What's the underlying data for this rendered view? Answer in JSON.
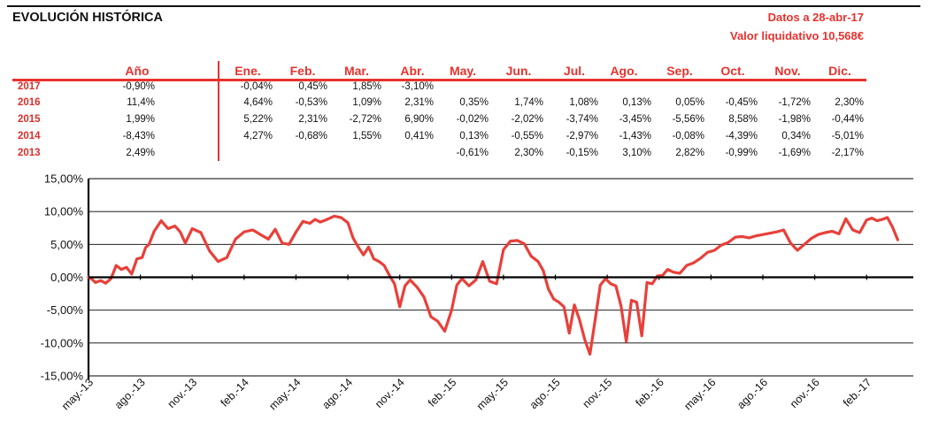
{
  "title": "EVOLUCIÓN HISTÓRICA",
  "date_line": "Datos a 28-abr-17",
  "value_line": "Valor liquidativo 10,568€",
  "colors": {
    "accent": "#e8322e",
    "line": "#e8403a"
  },
  "table": {
    "headers": [
      "Año",
      "Ene.",
      "Feb.",
      "Mar.",
      "Abr.",
      "May.",
      "Jun.",
      "Jul.",
      "Ago.",
      "Sep.",
      "Oct.",
      "Nov.",
      "Dic."
    ],
    "rows": [
      {
        "year": "2017",
        "cells": [
          "-0,90%",
          "-0,04%",
          "0,45%",
          "1,85%",
          "-3,10%",
          "",
          "",
          "",
          "",
          "",
          "",
          "",
          ""
        ]
      },
      {
        "year": "2016",
        "cells": [
          "11,4%",
          "4,64%",
          "-0,53%",
          "1,09%",
          "2,31%",
          "0,35%",
          "1,74%",
          "1,08%",
          "0,13%",
          "0,05%",
          "-0,45%",
          "-1,72%",
          "2,30%"
        ]
      },
      {
        "year": "2015",
        "cells": [
          "1,99%",
          "5,22%",
          "2,31%",
          "-2,72%",
          "6,90%",
          "-0,02%",
          "-2,02%",
          "-3,74%",
          "-3,45%",
          "-5,56%",
          "8,58%",
          "-1,98%",
          "-0,44%"
        ]
      },
      {
        "year": "2014",
        "cells": [
          "-8,43%",
          "4,27%",
          "-0,68%",
          "1,55%",
          "0,41%",
          "0,13%",
          "-0,55%",
          "-2,97%",
          "-1,43%",
          "-0,08%",
          "-4,39%",
          "0,34%",
          "-5,01%"
        ]
      },
      {
        "year": "2013",
        "cells": [
          "2,49%",
          "",
          "",
          "",
          "",
          "-0,61%",
          "2,30%",
          "-0,15%",
          "3,10%",
          "2,82%",
          "-0,99%",
          "-1,69%",
          "-2,17%"
        ]
      }
    ]
  },
  "chart_data": {
    "type": "line",
    "title": "",
    "xlabel": "",
    "ylabel": "",
    "ylim": [
      -15,
      15
    ],
    "y_ticks": [
      "-15,00%",
      "-10,00%",
      "-5,00%",
      "0,00%",
      "5,00%",
      "10,00%",
      "15,00%"
    ],
    "y_tick_values": [
      -15,
      -10,
      -5,
      0,
      5,
      10,
      15
    ],
    "x_ticks": [
      "may.-13",
      "ago.-13",
      "nov.-13",
      "feb.-14",
      "may.-14",
      "ago.-14",
      "nov.-14",
      "feb.-15",
      "may.-15",
      "ago.-15",
      "nov.-15",
      "feb.-16",
      "may.-16",
      "ago.-16",
      "nov.-16",
      "feb.-17"
    ],
    "grid": true,
    "series": [
      {
        "x": [
          0,
          0.2,
          0.4,
          0.7,
          1.0,
          1.3,
          1.6,
          1.9,
          2.2,
          2.5,
          2.8,
          3.1,
          3.3,
          3.5,
          3.8,
          4.2,
          4.6,
          5.0,
          5.3,
          5.6,
          6.0,
          6.5,
          7.0,
          7.5,
          8.0,
          8.5,
          9.0,
          9.5,
          10.0,
          10.4,
          10.8,
          11.2,
          11.6,
          12.0,
          12.4,
          12.8,
          13.1,
          13.4,
          13.8,
          14.2,
          14.6,
          15.0,
          15.3,
          15.6,
          15.9,
          16.2,
          16.5,
          16.8,
          17.1,
          17.4,
          17.7,
          18.0,
          18.3,
          18.6,
          19.0,
          19.4,
          19.8,
          20.2,
          20.6,
          21.0,
          21.3,
          21.6,
          22.0,
          22.4,
          22.8,
          23.2,
          23.6,
          24.0,
          24.4,
          24.8,
          25.2,
          25.6,
          26.0,
          26.3,
          26.6,
          26.9,
          27.2,
          27.5,
          27.8,
          28.1,
          28.4,
          28.7,
          29.0,
          29.3,
          29.6,
          29.9,
          30.2,
          30.5,
          30.8,
          31.1,
          31.4,
          31.7,
          32.0,
          32.3,
          32.6,
          32.9,
          33.2,
          33.5,
          33.8,
          34.2,
          34.6,
          35.0,
          35.4,
          35.8,
          36.2,
          36.6,
          37.0,
          37.4,
          37.8,
          38.2,
          38.6,
          39.0,
          39.4,
          39.8,
          40.2,
          40.6,
          41.0,
          41.4,
          41.8,
          42.2,
          42.6,
          43.0,
          43.4,
          43.8,
          44.2,
          44.6,
          45.0,
          45.3,
          45.6,
          45.9,
          46.2,
          46.5,
          46.8
        ],
        "y": [
          0,
          -0.3,
          -0.8,
          -0.5,
          -0.9,
          -0.2,
          1.8,
          1.2,
          1.5,
          0.5,
          2.8,
          3.0,
          4.5,
          5.0,
          7.0,
          8.6,
          7.4,
          7.8,
          6.9,
          5.2,
          7.4,
          6.8,
          4.0,
          2.4,
          3.0,
          5.8,
          6.9,
          7.2,
          6.4,
          5.8,
          7.3,
          5.2,
          5.0,
          6.9,
          8.5,
          8.2,
          8.8,
          8.4,
          8.8,
          9.3,
          9.1,
          8.3,
          6.0,
          4.6,
          3.4,
          4.6,
          2.8,
          2.4,
          1.8,
          0.3,
          -1.0,
          -4.5,
          -1.3,
          -0.4,
          -1.5,
          -3.0,
          -6.0,
          -6.7,
          -8.2,
          -5.0,
          -1.2,
          -0.2,
          -1.3,
          -0.4,
          2.4,
          -0.6,
          -1.0,
          4.2,
          5.5,
          5.6,
          5.1,
          3.2,
          2.4,
          1.0,
          -1.8,
          -3.3,
          -3.8,
          -4.5,
          -8.5,
          -4.2,
          -6.5,
          -9.5,
          -11.7,
          -6.5,
          -1.2,
          -0.2,
          -1.0,
          -1.3,
          -4.4,
          -9.8,
          -3.5,
          -3.8,
          -8.9,
          -0.8,
          -1.0,
          0.2,
          0.3,
          1.2,
          0.8,
          0.6,
          1.8,
          2.2,
          2.9,
          3.8,
          4.1,
          4.9,
          5.3,
          6.1,
          6.2,
          6.0,
          6.3,
          6.5,
          6.7,
          6.9,
          7.2,
          5.2,
          4.1,
          5.0,
          5.9,
          6.5,
          6.8,
          7.0,
          6.6,
          8.9,
          7.2,
          6.8,
          8.7,
          9.0,
          8.6,
          8.8,
          9.1,
          7.6,
          5.7
        ]
      }
    ]
  }
}
